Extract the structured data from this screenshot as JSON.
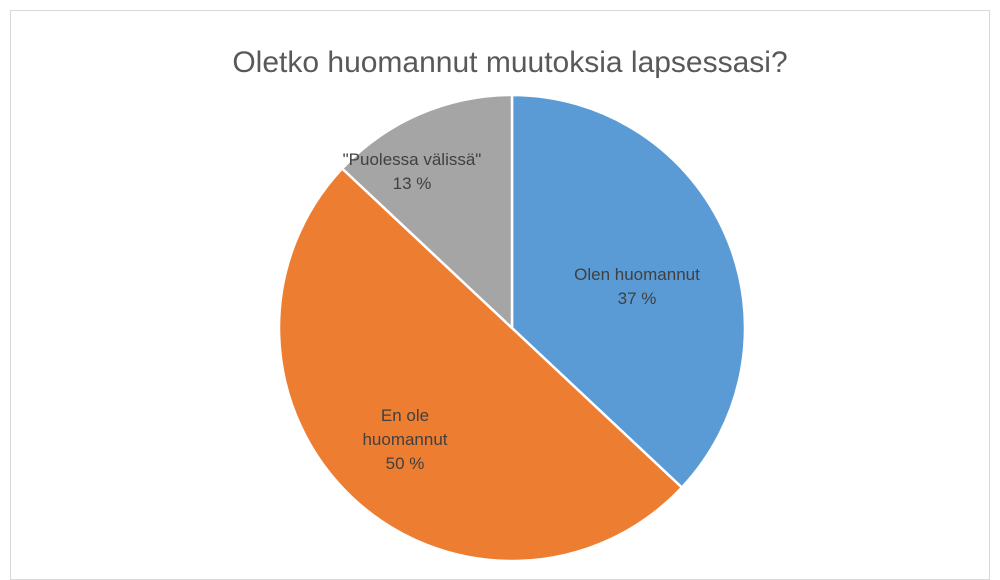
{
  "chart_data": {
    "type": "pie",
    "title": "Oletko huomannut muutoksia lapsessasi?",
    "categories": [
      "Olen huomannut",
      "En ole huomannut",
      "\"Puolessa välissä\""
    ],
    "values": [
      37,
      50,
      13
    ],
    "value_labels": [
      "37 %",
      "50 %",
      "13 %"
    ],
    "colors": [
      "#5b9bd5",
      "#ed7d31",
      "#a5a5a5"
    ]
  }
}
